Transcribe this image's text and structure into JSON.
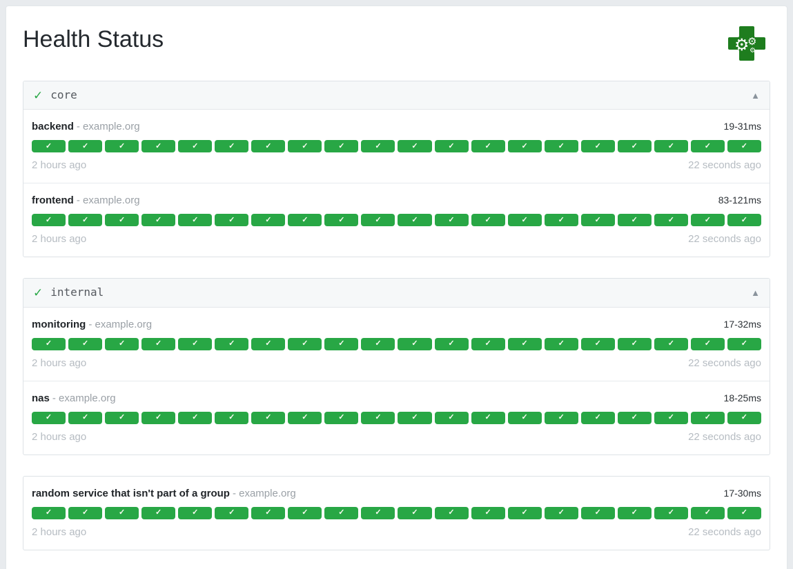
{
  "page": {
    "title": "Health Status",
    "background_color": "#e8ebee",
    "card_background": "#ffffff"
  },
  "logo": {
    "description": "green medical cross with white gears",
    "cross_color": "#1e7d1e",
    "gear_glyph": "⚙"
  },
  "icons": {
    "group_success_check": "✓",
    "block_success_check": "✓",
    "collapse_arrow": "▲"
  },
  "colors": {
    "success_green": "#28a745",
    "group_header_background": "#f6f8f9",
    "muted_text": "#b6bcc2"
  },
  "groups": [
    {
      "name": "core",
      "status_icon": "✓",
      "collapse_icon": "▲",
      "endpoints": [
        {
          "name": "backend",
          "host_label": "- example.org",
          "latency": "19-31ms",
          "oldest_result": "2 hours ago",
          "newest_result": "22 seconds ago",
          "results": [
            "success",
            "success",
            "success",
            "success",
            "success",
            "success",
            "success",
            "success",
            "success",
            "success",
            "success",
            "success",
            "success",
            "success",
            "success",
            "success",
            "success",
            "success",
            "success",
            "success"
          ]
        },
        {
          "name": "frontend",
          "host_label": "- example.org",
          "latency": "83-121ms",
          "oldest_result": "2 hours ago",
          "newest_result": "22 seconds ago",
          "results": [
            "success",
            "success",
            "success",
            "success",
            "success",
            "success",
            "success",
            "success",
            "success",
            "success",
            "success",
            "success",
            "success",
            "success",
            "success",
            "success",
            "success",
            "success",
            "success",
            "success"
          ]
        }
      ]
    },
    {
      "name": "internal",
      "status_icon": "✓",
      "collapse_icon": "▲",
      "endpoints": [
        {
          "name": "monitoring",
          "host_label": "- example.org",
          "latency": "17-32ms",
          "oldest_result": "2 hours ago",
          "newest_result": "22 seconds ago",
          "results": [
            "success",
            "success",
            "success",
            "success",
            "success",
            "success",
            "success",
            "success",
            "success",
            "success",
            "success",
            "success",
            "success",
            "success",
            "success",
            "success",
            "success",
            "success",
            "success",
            "success"
          ]
        },
        {
          "name": "nas",
          "host_label": "- example.org",
          "latency": "18-25ms",
          "oldest_result": "2 hours ago",
          "newest_result": "22 seconds ago",
          "results": [
            "success",
            "success",
            "success",
            "success",
            "success",
            "success",
            "success",
            "success",
            "success",
            "success",
            "success",
            "success",
            "success",
            "success",
            "success",
            "success",
            "success",
            "success",
            "success",
            "success"
          ]
        }
      ]
    },
    {
      "name": null,
      "status_icon": null,
      "collapse_icon": null,
      "endpoints": [
        {
          "name": "random service that isn't part of a group",
          "host_label": "- example.org",
          "latency": "17-30ms",
          "oldest_result": "2 hours ago",
          "newest_result": "22 seconds ago",
          "results": [
            "success",
            "success",
            "success",
            "success",
            "success",
            "success",
            "success",
            "success",
            "success",
            "success",
            "success",
            "success",
            "success",
            "success",
            "success",
            "success",
            "success",
            "success",
            "success",
            "success"
          ]
        }
      ]
    }
  ]
}
